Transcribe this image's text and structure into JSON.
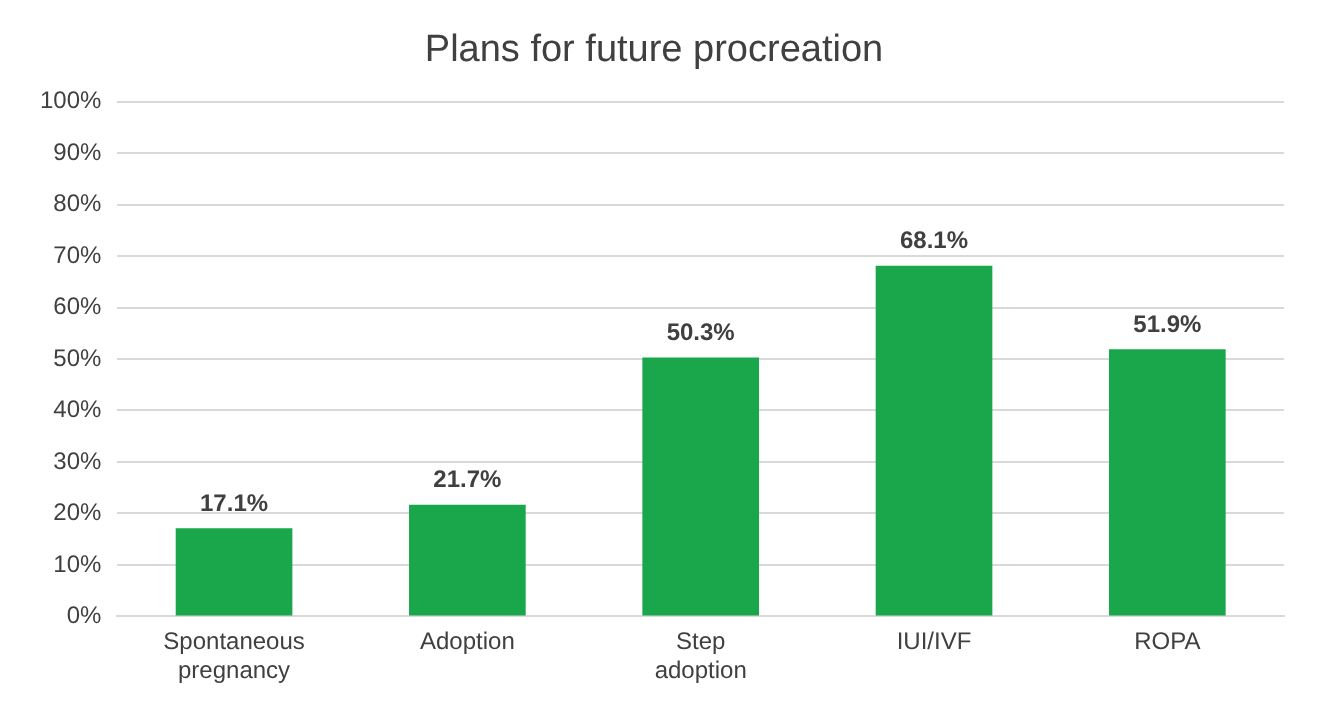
{
  "chart_data": {
    "type": "bar",
    "title": "Plans for future procreation",
    "categories": [
      "Spontaneous pregnancy",
      "Adoption",
      "Step adoption",
      "IUI/IVF",
      "ROPA"
    ],
    "values": [
      17.1,
      21.7,
      50.3,
      68.1,
      51.9
    ],
    "value_labels": [
      "17.1%",
      "21.7%",
      "50.3%",
      "68.1%",
      "51.9%"
    ],
    "color": "#1aa64a",
    "ylim": [
      0,
      100
    ],
    "yticks": [
      {
        "value": 0,
        "label": "0%"
      },
      {
        "value": 10,
        "label": "10%"
      },
      {
        "value": 20,
        "label": "20%"
      },
      {
        "value": 30,
        "label": "30%"
      },
      {
        "value": 40,
        "label": "40%"
      },
      {
        "value": 50,
        "label": "50%"
      },
      {
        "value": 60,
        "label": "60%"
      },
      {
        "value": 70,
        "label": "70%"
      },
      {
        "value": 80,
        "label": "80%"
      },
      {
        "value": 90,
        "label": "90%"
      },
      {
        "value": 100,
        "label": "100%"
      }
    ],
    "grid": "y"
  }
}
